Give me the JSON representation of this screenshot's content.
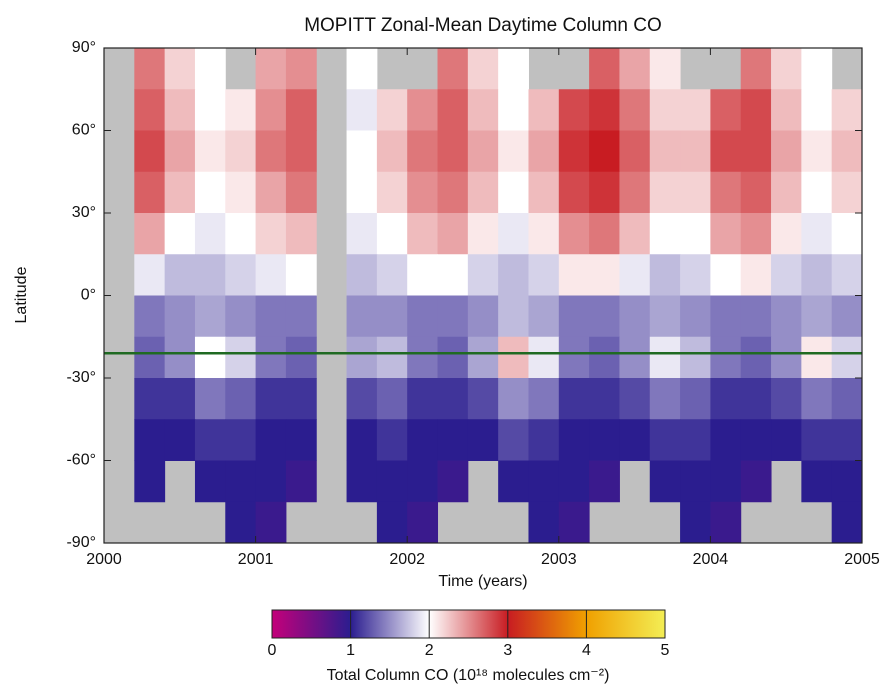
{
  "chart_data": {
    "type": "heatmap",
    "title": "MOPITT Zonal-Mean Daytime Column CO",
    "xlabel": "Time (years)",
    "ylabel": "Latitude",
    "x": [
      2000.1,
      2000.3,
      2000.5,
      2000.7,
      2000.9,
      2001.1,
      2001.3,
      2001.5,
      2001.7,
      2001.9,
      2002.1,
      2002.3,
      2002.5,
      2002.7,
      2002.9,
      2003.1,
      2003.3,
      2003.5,
      2003.7,
      2003.9,
      2004.1,
      2004.3,
      2004.5,
      2004.7,
      2004.9
    ],
    "y": [
      82.5,
      67.5,
      52.5,
      37.5,
      22.5,
      7.5,
      -7.5,
      -22.5,
      -37.5,
      -52.5,
      -67.5,
      -82.5
    ],
    "cell_width": 0.2,
    "cell_height": 15,
    "values": [
      [
        null,
        2.6,
        2.2,
        2.0,
        null,
        2.4,
        2.5,
        null,
        2.0,
        null,
        null,
        2.6,
        2.2,
        2.0,
        null,
        null,
        2.7,
        2.4,
        2.1,
        null,
        null,
        2.6,
        2.2,
        2.0,
        null
      ],
      [
        null,
        2.7,
        2.3,
        2.0,
        2.1,
        2.5,
        2.7,
        null,
        1.9,
        2.2,
        2.5,
        2.7,
        2.3,
        2.0,
        2.3,
        2.8,
        2.9,
        2.6,
        2.2,
        2.2,
        2.7,
        2.8,
        2.3,
        2.0,
        2.2
      ],
      [
        null,
        2.8,
        2.4,
        2.1,
        2.2,
        2.6,
        2.7,
        null,
        2.0,
        2.3,
        2.6,
        2.7,
        2.4,
        2.1,
        2.4,
        2.9,
        3.0,
        2.7,
        2.3,
        2.3,
        2.8,
        2.8,
        2.4,
        2.1,
        2.3
      ],
      [
        null,
        2.7,
        2.3,
        2.0,
        2.1,
        2.4,
        2.6,
        null,
        2.0,
        2.2,
        2.5,
        2.6,
        2.3,
        2.0,
        2.3,
        2.8,
        2.9,
        2.6,
        2.2,
        2.2,
        2.6,
        2.7,
        2.3,
        2.0,
        2.2
      ],
      [
        null,
        2.4,
        2.0,
        1.9,
        2.0,
        2.2,
        2.3,
        null,
        1.9,
        2.0,
        2.3,
        2.4,
        2.1,
        1.9,
        2.1,
        2.5,
        2.6,
        2.3,
        2.0,
        2.0,
        2.4,
        2.5,
        2.1,
        1.9,
        2.0
      ],
      [
        null,
        1.9,
        1.7,
        1.7,
        1.8,
        1.9,
        2.0,
        null,
        1.7,
        1.8,
        2.0,
        2.0,
        1.8,
        1.7,
        1.8,
        2.1,
        2.1,
        1.9,
        1.7,
        1.8,
        2.0,
        2.1,
        1.8,
        1.7,
        1.8
      ],
      [
        null,
        1.4,
        1.5,
        1.6,
        1.5,
        1.4,
        1.4,
        null,
        1.5,
        1.5,
        1.4,
        1.4,
        1.5,
        1.7,
        1.6,
        1.4,
        1.4,
        1.5,
        1.6,
        1.5,
        1.4,
        1.4,
        1.5,
        1.6,
        1.5
      ],
      [
        null,
        1.3,
        1.5,
        2.0,
        1.8,
        1.4,
        1.3,
        null,
        1.6,
        1.7,
        1.4,
        1.3,
        1.6,
        2.3,
        1.9,
        1.4,
        1.3,
        1.5,
        1.9,
        1.7,
        1.4,
        1.3,
        1.5,
        2.1,
        1.8
      ],
      [
        null,
        1.1,
        1.1,
        1.4,
        1.3,
        1.1,
        1.1,
        null,
        1.2,
        1.3,
        1.1,
        1.1,
        1.2,
        1.5,
        1.4,
        1.1,
        1.1,
        1.2,
        1.4,
        1.3,
        1.1,
        1.1,
        1.2,
        1.4,
        1.3
      ],
      [
        null,
        1.0,
        1.0,
        1.1,
        1.1,
        1.0,
        1.0,
        null,
        1.0,
        1.1,
        1.0,
        1.0,
        1.0,
        1.2,
        1.1,
        1.0,
        1.0,
        1.0,
        1.1,
        1.1,
        1.0,
        1.0,
        1.0,
        1.1,
        1.1
      ],
      [
        null,
        1.0,
        null,
        1.0,
        1.0,
        1.0,
        0.9,
        null,
        1.0,
        1.0,
        1.0,
        0.9,
        null,
        1.0,
        1.0,
        1.0,
        0.9,
        null,
        1.0,
        1.0,
        1.0,
        0.9,
        null,
        1.0,
        1.0
      ],
      [
        null,
        null,
        null,
        null,
        1.0,
        0.9,
        null,
        null,
        null,
        1.0,
        0.9,
        null,
        null,
        null,
        1.0,
        0.9,
        null,
        null,
        null,
        1.0,
        0.9,
        null,
        null,
        null,
        1.0
      ]
    ],
    "xlim": [
      2000,
      2005
    ],
    "xticks": [
      2000,
      2001,
      2002,
      2003,
      2004,
      2005
    ],
    "ylim": [
      -90,
      90
    ],
    "yticks": [
      {
        "value": 90,
        "label": "90°"
      },
      {
        "value": 60,
        "label": "60°"
      },
      {
        "value": 30,
        "label": "30°"
      },
      {
        "value": 0,
        "label": "0°"
      },
      {
        "value": -30,
        "label": "-30°"
      },
      {
        "value": -60,
        "label": "-60°"
      },
      {
        "value": -90,
        "label": "-90°"
      }
    ],
    "missing_color": "#c0c0c0",
    "reference_line": {
      "value": -21,
      "color": "#1f6a22"
    },
    "colorbar": {
      "lim": [
        0,
        5
      ],
      "ticks": [
        0,
        1,
        2,
        3,
        4,
        5
      ],
      "colors": [
        "#c4007a",
        "#2b1d8f",
        "#ffffff",
        "#c81c22",
        "#f0a000",
        "#f3ee55"
      ],
      "label": "Total Column CO (10¹⁸ molecules cm⁻²)"
    }
  }
}
